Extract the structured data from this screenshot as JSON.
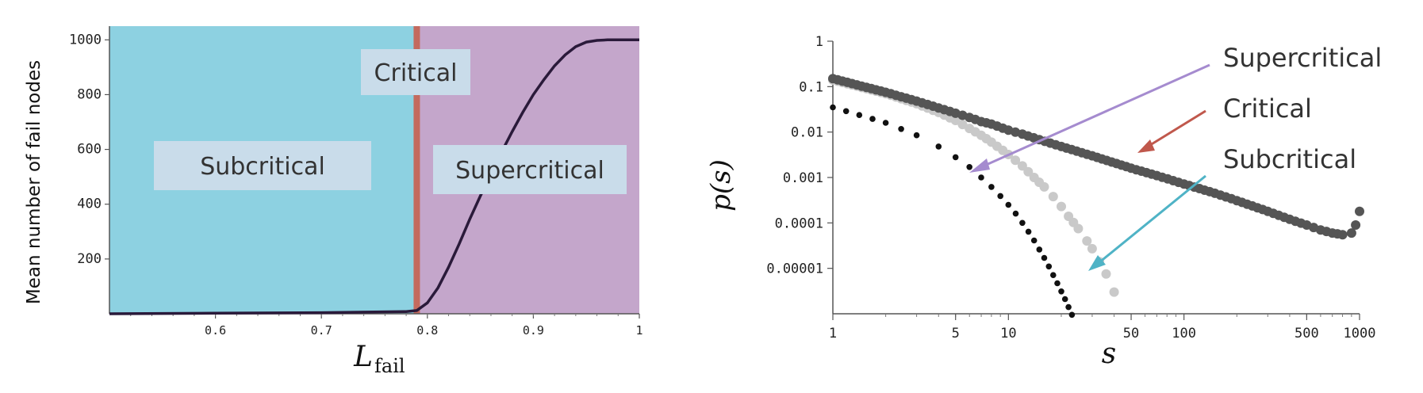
{
  "chart_data": [
    {
      "type": "line",
      "xlabel_main": "L",
      "xlabel_sub": "fail",
      "ylabel": "Mean number of fail nodes",
      "xlim": [
        0.5,
        1.0
      ],
      "ylim": [
        0,
        1050
      ],
      "x_ticks": [
        "0.6",
        "0.7",
        "0.8",
        "0.9",
        "1"
      ],
      "x_tick_values": [
        0.6,
        0.7,
        0.8,
        0.9,
        1.0
      ],
      "y_ticks": [
        "200",
        "400",
        "600",
        "800",
        "1000"
      ],
      "y_tick_values": [
        200,
        400,
        600,
        800,
        1000
      ],
      "critical_x": 0.79,
      "regions": [
        {
          "label": "Subcritical",
          "from": 0.5,
          "to": 0.79,
          "color": "#8dd1e1"
        },
        {
          "label": "Supercritical",
          "from": 0.79,
          "to": 1.0,
          "color": "#c4a6cb"
        }
      ],
      "critical_label": "Critical",
      "critical_color": "#c46a5e",
      "curve_color": "#2a1a3a",
      "series": [
        {
          "x": [
            0.5,
            0.6,
            0.7,
            0.78,
            0.79,
            0.8,
            0.81,
            0.82,
            0.83,
            0.84,
            0.85,
            0.86,
            0.87,
            0.88,
            0.89,
            0.9,
            0.91,
            0.92,
            0.93,
            0.94,
            0.95,
            0.96,
            0.97,
            0.98,
            0.99,
            1.0
          ],
          "y": [
            0,
            2,
            4,
            8,
            12,
            40,
            95,
            170,
            255,
            345,
            430,
            510,
            590,
            665,
            735,
            800,
            855,
            905,
            945,
            975,
            992,
            998,
            1000,
            1000,
            1000,
            1000
          ]
        }
      ]
    },
    {
      "type": "scatter",
      "xlabel": "s",
      "ylabel": "p(s)",
      "log_x": true,
      "log_y": true,
      "xlim": [
        1,
        1000
      ],
      "ylim": [
        1e-06,
        1
      ],
      "x_ticks": [
        "1",
        "5",
        "10",
        "50",
        "100",
        "500",
        "1000"
      ],
      "x_tick_values": [
        1,
        5,
        10,
        50,
        100,
        500,
        1000
      ],
      "y_ticks": [
        "1",
        "0.1",
        "0.01",
        "0.001",
        "0.0001",
        "0.00001"
      ],
      "y_tick_values": [
        1,
        0.1,
        0.01,
        0.001,
        0.0001,
        1e-05
      ],
      "legend": [
        {
          "label": "Supercritical",
          "arrow_color": "#a58bcf"
        },
        {
          "label": "Critical",
          "arrow_color": "#c0584c"
        },
        {
          "label": "Subcritical",
          "arrow_color": "#4fb3c6"
        }
      ],
      "series": [
        {
          "name": "Supercritical",
          "color": "#555555",
          "x": [
            1,
            2,
            3,
            4,
            5,
            6,
            7,
            8,
            10,
            12,
            15,
            20,
            30,
            50,
            70,
            100,
            150,
            200,
            300,
            400,
            500,
            600,
            700,
            800,
            900,
            950,
            1000
          ],
          "y": [
            0.15,
            0.075,
            0.048,
            0.034,
            0.026,
            0.021,
            0.017,
            0.015,
            0.011,
            0.009,
            0.0068,
            0.0048,
            0.003,
            0.0016,
            0.0011,
            0.00072,
            0.00045,
            0.00031,
            0.00018,
            0.00012,
            9e-05,
            7e-05,
            6e-05,
            5.5e-05,
            6e-05,
            9e-05,
            0.00018
          ]
        },
        {
          "name": "Critical",
          "color": "#c9c9c9",
          "x": [
            1,
            2,
            3,
            4,
            5,
            6,
            7,
            8,
            10,
            12,
            14,
            16,
            18,
            20,
            22,
            25,
            28,
            30,
            33,
            36,
            40
          ],
          "y": [
            0.14,
            0.07,
            0.042,
            0.027,
            0.018,
            0.012,
            0.0085,
            0.006,
            0.0032,
            0.0018,
            0.001,
            0.00062,
            0.00038,
            0.00023,
            0.00014,
            7.5e-05,
            4e-05,
            2.7e-05,
            1.4e-05,
            7.5e-06,
            3e-06
          ]
        },
        {
          "name": "Subcritical",
          "color": "#111111",
          "x": [
            1,
            2,
            3,
            4,
            5,
            6,
            7,
            8,
            9,
            10,
            11,
            12,
            13,
            14,
            15,
            16,
            17,
            18,
            19,
            20,
            21,
            22,
            23
          ],
          "y": [
            0.035,
            0.016,
            0.0085,
            0.0048,
            0.0028,
            0.0017,
            0.001,
            0.00062,
            0.00039,
            0.00025,
            0.00016,
            0.0001,
            6.4e-05,
            4.1e-05,
            2.6e-05,
            1.7e-05,
            1.1e-05,
            7.1e-06,
            4.7e-06,
            3.1e-06,
            2.1e-06,
            1.4e-06,
            9.5e-07
          ]
        }
      ]
    }
  ]
}
